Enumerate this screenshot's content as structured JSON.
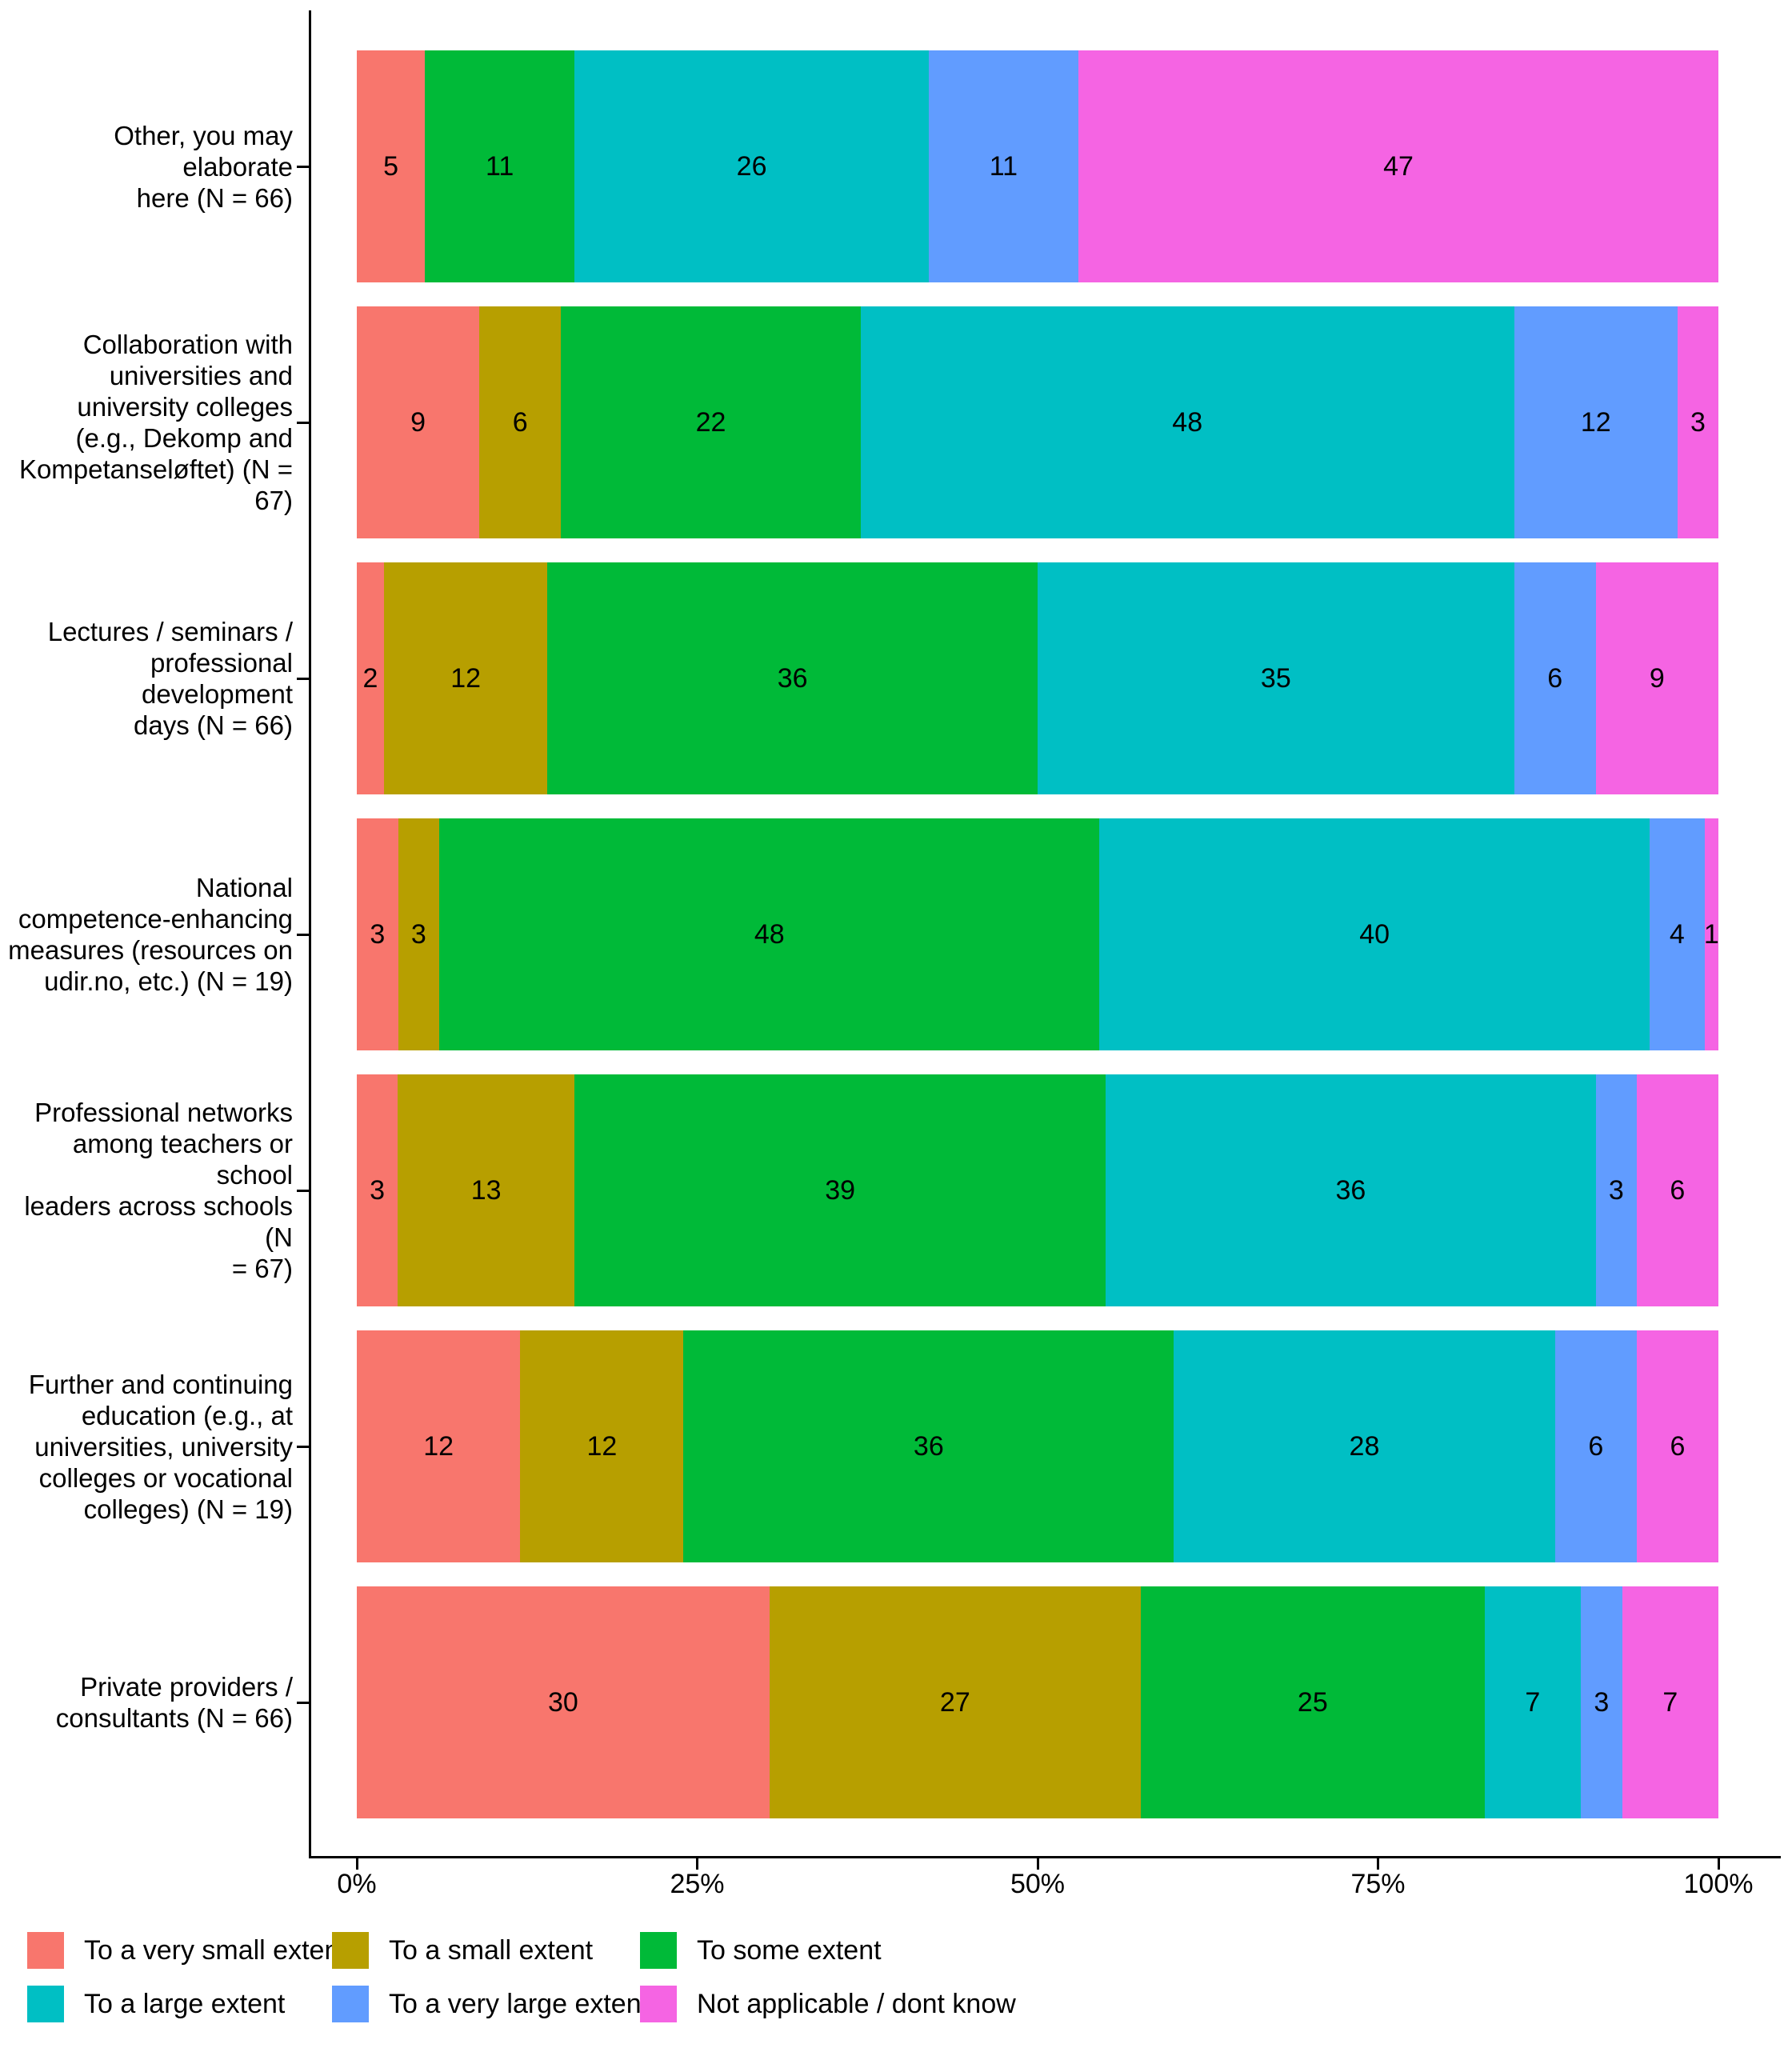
{
  "chart_data": {
    "type": "bar",
    "orientation": "horizontal_stacked",
    "unit": "percent",
    "title": "",
    "xlabel": "",
    "ylabel": "",
    "grid": false,
    "x_axis": {
      "tick_labels": [
        "0%",
        "25%",
        "50%",
        "75%",
        "100%"
      ],
      "range": [
        0,
        100
      ]
    },
    "legend": {
      "position": "bottom",
      "entries": [
        {
          "label": "To a very small extent",
          "color": "#F8766D"
        },
        {
          "label": "To a small extent",
          "color": "#B79F00"
        },
        {
          "label": "To some extent",
          "color": "#00BA38"
        },
        {
          "label": "To a large extent",
          "color": "#00BFC4"
        },
        {
          "label": "To a very large extent",
          "color": "#619CFF"
        },
        {
          "label": "Not applicable / dont know",
          "color": "#F564E3"
        }
      ]
    },
    "categories": [
      {
        "label": "Other, you may elaborate\nhere (N = 66)",
        "values": [
          5,
          0,
          11,
          26,
          11,
          47
        ]
      },
      {
        "label": "Collaboration with\nuniversities and\nuniversity colleges\n(e.g., Dekomp and\nKompetanseløftet) (N =\n67)",
        "values": [
          9,
          6,
          22,
          48,
          12,
          3
        ]
      },
      {
        "label": "Lectures / seminars /\nprofessional development\ndays (N = 66)",
        "values": [
          2,
          12,
          36,
          35,
          6,
          9
        ]
      },
      {
        "label": "National\ncompetence-enhancing\nmeasures (resources on\nudir.no, etc.) (N = 19)",
        "values": [
          3,
          3,
          48,
          40,
          4,
          1
        ]
      },
      {
        "label": "Professional networks\namong teachers or school\nleaders across schools (N\n= 67)",
        "values": [
          3,
          13,
          39,
          36,
          3,
          6
        ]
      },
      {
        "label": "Further and continuing\neducation (e.g., at\nuniversities, university\ncolleges or vocational\ncolleges) (N = 19)",
        "values": [
          12,
          12,
          36,
          28,
          6,
          6
        ]
      },
      {
        "label": "Private providers /\nconsultants (N = 66)",
        "values": [
          30,
          27,
          25,
          7,
          3,
          7
        ]
      }
    ]
  },
  "colors": {
    "axis": "#000000",
    "text": "#000000",
    "background": "#FFFFFF"
  }
}
